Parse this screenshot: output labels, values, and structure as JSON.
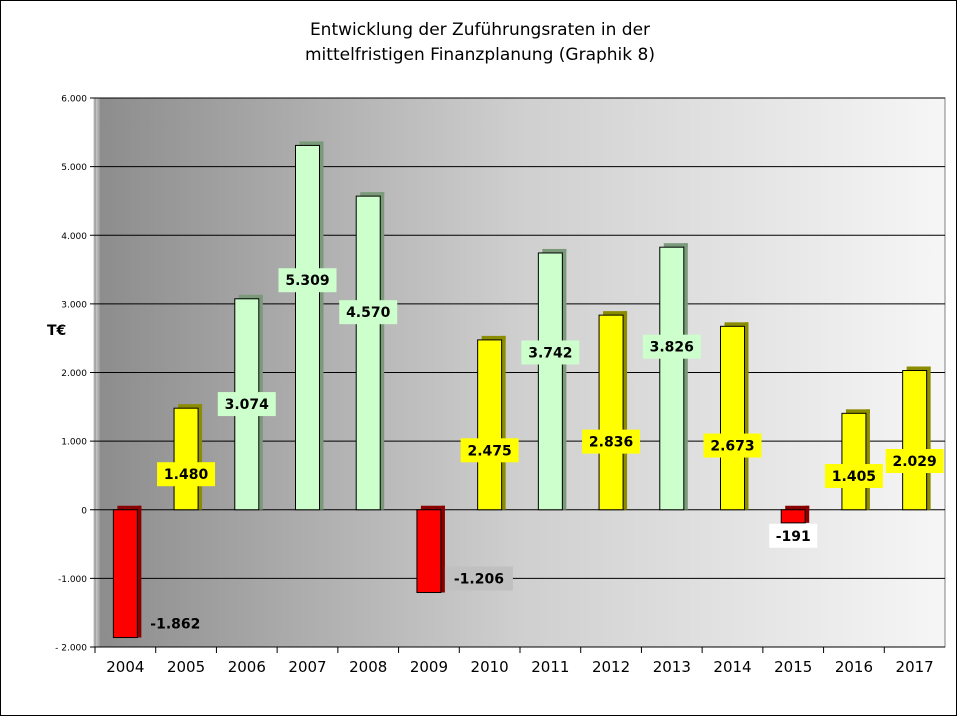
{
  "chart_data": {
    "type": "bar",
    "title_line1": "Entwicklung der Zuführungsraten in der",
    "title_line2": "mittelfristigen Finanzplanung (Graphik 8)",
    "ylabel": "T€",
    "xlabel": "",
    "ylim": [
      -2000,
      6000
    ],
    "yticks": [
      -2000,
      -1000,
      0,
      1000,
      2000,
      3000,
      4000,
      5000,
      6000
    ],
    "ytick_labels": [
      "- 2.000",
      "-1.000",
      "0",
      "1.000",
      "2.000",
      "3.000",
      "4.000",
      "5.000",
      "6.000"
    ],
    "grid": true,
    "categories": [
      "2004",
      "2005",
      "2006",
      "2007",
      "2008",
      "2009",
      "2010",
      "2011",
      "2012",
      "2013",
      "2014",
      "2015",
      "2016",
      "2017"
    ],
    "values": [
      -1862,
      1480,
      3074,
      5309,
      4570,
      -1206,
      2475,
      3742,
      2836,
      3826,
      2673,
      -191,
      1405,
      2029
    ],
    "data_labels": [
      "-1.862",
      "1.480",
      "3.074",
      "5.309",
      "4.570",
      "-1.206",
      "2.475",
      "3.742",
      "2.836",
      "3.826",
      "2.673",
      "-191",
      "1.405",
      "2.029"
    ],
    "bar_colors": [
      "#ff0000",
      "#ffff00",
      "#ccffcc",
      "#ccffcc",
      "#ccffcc",
      "#ff0000",
      "#ffff00",
      "#ccffcc",
      "#ffff00",
      "#ccffcc",
      "#ffff00",
      "#ff0000",
      "#ffff00",
      "#ffff00"
    ],
    "label_backgrounds": [
      "none",
      "#ffff00",
      "#ccffcc",
      "#ccffcc",
      "#ccffcc",
      "#c0c0c0",
      "#ffff00",
      "#ccffcc",
      "#ffff00",
      "#ccffcc",
      "#ffff00",
      "#ffffff",
      "#ffff00",
      "#ffff00"
    ]
  }
}
